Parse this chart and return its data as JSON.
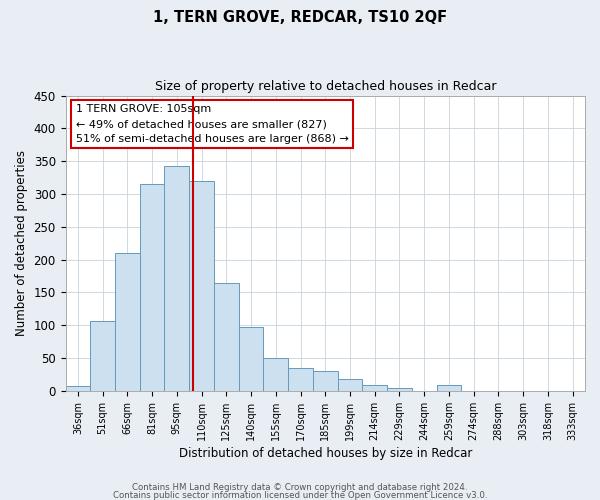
{
  "title": "1, TERN GROVE, REDCAR, TS10 2QF",
  "subtitle": "Size of property relative to detached houses in Redcar",
  "xlabel": "Distribution of detached houses by size in Redcar",
  "ylabel": "Number of detached properties",
  "bar_color": "#cce0f0",
  "bar_edge_color": "#6699bb",
  "categories": [
    "36sqm",
    "51sqm",
    "66sqm",
    "81sqm",
    "95sqm",
    "110sqm",
    "125sqm",
    "140sqm",
    "155sqm",
    "170sqm",
    "185sqm",
    "199sqm",
    "214sqm",
    "229sqm",
    "244sqm",
    "259sqm",
    "274sqm",
    "288sqm",
    "303sqm",
    "318sqm",
    "333sqm"
  ],
  "values": [
    7,
    107,
    210,
    316,
    343,
    320,
    165,
    98,
    50,
    35,
    30,
    18,
    9,
    5,
    0,
    9,
    0,
    0,
    0,
    0,
    0
  ],
  "vline_x": 4.67,
  "vline_color": "#cc0000",
  "annotation_text": "1 TERN GROVE: 105sqm\n← 49% of detached houses are smaller (827)\n51% of semi-detached houses are larger (868) →",
  "ylim": [
    0,
    450
  ],
  "yticks": [
    0,
    50,
    100,
    150,
    200,
    250,
    300,
    350,
    400,
    450
  ],
  "footer_line1": "Contains HM Land Registry data © Crown copyright and database right 2024.",
  "footer_line2": "Contains public sector information licensed under the Open Government Licence v3.0.",
  "bg_color": "#e8eef4",
  "plot_bg_color": "#ffffff",
  "grid_color": "#c8d4dc"
}
